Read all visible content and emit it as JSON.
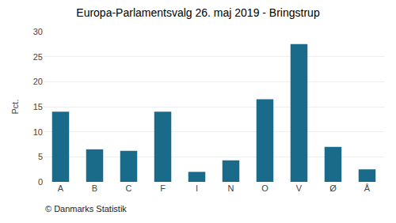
{
  "chart_data": {
    "type": "bar",
    "title": "Europa-Parlamentsvalg 26. maj 2019 - Bringstrup",
    "categories": [
      "A",
      "B",
      "C",
      "F",
      "I",
      "N",
      "O",
      "V",
      "Ø",
      "Å"
    ],
    "values": [
      14.0,
      6.5,
      6.2,
      14.0,
      2.0,
      4.3,
      16.5,
      27.5,
      7.0,
      2.5
    ],
    "color": "#1a6b8a",
    "ylabel": "Pct.",
    "ylim": [
      0,
      30
    ],
    "yticks": [
      0,
      5,
      10,
      15,
      20,
      25,
      30
    ],
    "grid": true,
    "annotations": [
      "© Danmarks Statistik"
    ]
  }
}
